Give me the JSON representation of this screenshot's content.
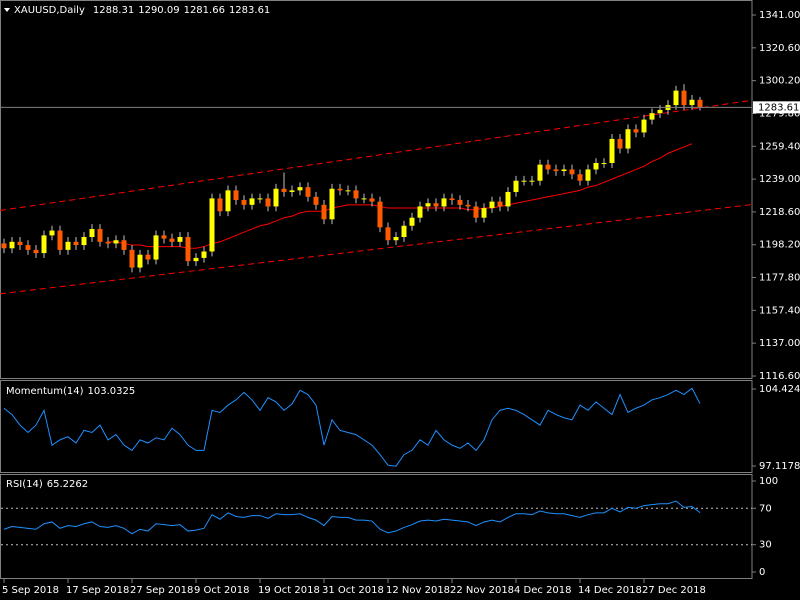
{
  "chart_data": [
    {
      "type": "candlestick",
      "title": "XAUUSD,Daily",
      "categories": [
        "5 Sep 2018",
        null,
        null,
        null,
        null,
        null,
        null,
        null,
        "17 Sep 2018",
        null,
        null,
        null,
        null,
        null,
        null,
        null,
        "27 Sep 2018",
        null,
        null,
        null,
        null,
        null,
        null,
        null,
        "9 Oct 2018",
        null,
        null,
        null,
        null,
        null,
        null,
        null,
        "19 Oct 2018",
        null,
        null,
        null,
        null,
        null,
        null,
        null,
        "31 Oct 2018",
        null,
        null,
        null,
        null,
        null,
        null,
        null,
        "12 Nov 2018",
        null,
        null,
        null,
        null,
        null,
        null,
        null,
        "22 Nov 2018",
        null,
        null,
        null,
        null,
        null,
        null,
        null,
        "4 Dec 2018",
        null,
        null,
        null,
        null,
        null,
        null,
        null,
        "14 Dec 2018",
        null,
        null,
        null,
        null,
        null,
        null,
        null,
        "27 Dec 2018",
        null,
        null,
        null,
        null,
        null,
        null,
        null
      ],
      "open": [
        1199,
        1196,
        1200,
        1198,
        1195,
        1193,
        1204,
        1207,
        1195,
        1200,
        1198,
        1203,
        1208,
        1200,
        1199,
        1201,
        1195,
        1184,
        1192,
        1189,
        1204,
        1202,
        1200,
        1203,
        1188,
        1190,
        1194,
        1227,
        1219,
        1232,
        1226,
        1223,
        1227,
        1227,
        1222,
        1233,
        1231,
        1232,
        1234,
        1228,
        1223,
        1214,
        1233,
        1232,
        1232,
        1227,
        1227,
        1225,
        1209,
        1201,
        1203,
        1210,
        1215,
        1222,
        1224,
        1222,
        1227,
        1226,
        1223,
        1222,
        1215,
        1221,
        1225,
        1222,
        1231,
        1238,
        1238,
        1238,
        1248,
        1245,
        1244,
        1245,
        1242,
        1238,
        1245,
        1249,
        1249,
        1264,
        1258,
        1270,
        1268,
        1276,
        1280,
        1282,
        1285,
        1294,
        1285,
        1288.31
      ],
      "high": [
        1202,
        1203,
        1203,
        1201,
        1198,
        1207,
        1210,
        1210,
        1203,
        1203,
        1206,
        1211,
        1211,
        1203,
        1204,
        1204,
        1198,
        1195,
        1195,
        1207,
        1207,
        1205,
        1206,
        1206,
        1193,
        1197,
        1230,
        1230,
        1235,
        1235,
        1229,
        1230,
        1230,
        1230,
        1236,
        1243,
        1235,
        1237,
        1237,
        1231,
        1226,
        1236,
        1236,
        1235,
        1235,
        1230,
        1230,
        1228,
        1212,
        1206,
        1213,
        1218,
        1225,
        1227,
        1227,
        1230,
        1230,
        1229,
        1226,
        1225,
        1224,
        1228,
        1228,
        1234,
        1241,
        1241,
        1241,
        1251,
        1251,
        1248,
        1248,
        1248,
        1245,
        1248,
        1252,
        1252,
        1267,
        1267,
        1273,
        1273,
        1279,
        1283,
        1285,
        1288,
        1297,
        1298,
        1291.3,
        1290.09
      ],
      "low": [
        1193,
        1193,
        1195,
        1192,
        1190,
        1190,
        1201,
        1192,
        1192,
        1195,
        1195,
        1200,
        1197,
        1196,
        1196,
        1192,
        1181,
        1181,
        1186,
        1186,
        1199,
        1197,
        1197,
        1185,
        1185,
        1187,
        1191,
        1216,
        1216,
        1223,
        1220,
        1220,
        1224,
        1219,
        1219,
        1228,
        1228,
        1229,
        1225,
        1220,
        1211,
        1211,
        1229,
        1229,
        1224,
        1224,
        1222,
        1206,
        1198,
        1198,
        1200,
        1207,
        1212,
        1219,
        1219,
        1219,
        1223,
        1220,
        1219,
        1212,
        1212,
        1218,
        1219,
        1219,
        1228,
        1235,
        1235,
        1235,
        1242,
        1241,
        1241,
        1239,
        1235,
        1235,
        1242,
        1246,
        1246,
        1255,
        1255,
        1265,
        1265,
        1273,
        1277,
        1279,
        1282,
        1282,
        1282,
        1281.66
      ],
      "close": [
        1196,
        1200,
        1198,
        1195,
        1193,
        1204,
        1207,
        1195,
        1200,
        1198,
        1203,
        1208,
        1200,
        1199,
        1201,
        1195,
        1184,
        1192,
        1189,
        1204,
        1202,
        1200,
        1203,
        1188,
        1190,
        1194,
        1227,
        1219,
        1232,
        1226,
        1223,
        1227,
        1227,
        1222,
        1233,
        1231,
        1232,
        1234,
        1228,
        1223,
        1214,
        1233,
        1232,
        1232,
        1227,
        1227,
        1225,
        1209,
        1201,
        1203,
        1210,
        1215,
        1222,
        1224,
        1222,
        1227,
        1226,
        1223,
        1222,
        1215,
        1221,
        1225,
        1222,
        1231,
        1238,
        1238,
        1238,
        1248,
        1245,
        1244,
        1245,
        1242,
        1238,
        1245,
        1249,
        1249,
        1264,
        1258,
        1270,
        1268,
        1276,
        1280,
        1282,
        1285,
        1294,
        1285,
        1288.31,
        1283.61
      ],
      "up_color": "#ffff00",
      "down_color": "#ff5a00",
      "wick_color": "#c0c0c0",
      "moving_average": {
        "color": "#ff0000",
        "values": [
          null,
          null,
          null,
          null,
          null,
          null,
          null,
          null,
          null,
          null,
          null,
          null,
          null,
          1200,
          1200,
          1199,
          1198,
          1198,
          1197,
          1197,
          1197,
          1197,
          1197,
          1196,
          1196,
          1197,
          1199,
          1200,
          1202,
          1204,
          1206,
          1208,
          1210,
          1211,
          1213,
          1215,
          1216,
          1218,
          1219,
          1219,
          1219,
          1221,
          1222,
          1223,
          1223,
          1223,
          1223,
          1222,
          1221,
          1221,
          1221,
          1221,
          1221,
          1221,
          1221,
          1221,
          1221,
          1221,
          1220,
          1220,
          1221,
          1221,
          1222,
          1223,
          1224,
          1225,
          1226,
          1227,
          1228,
          1229,
          1230,
          1231,
          1232,
          1234,
          1235,
          1237,
          1239,
          1241,
          1243,
          1245,
          1247,
          1250,
          1252,
          1255,
          1257,
          1259,
          1261,
          null
        ]
      },
      "trendlines": [
        {
          "color": "#ff0000",
          "x": [
            -0.5,
            93.5
          ],
          "values": [
            1219.5,
            1288.0
          ]
        },
        {
          "color": "#ff0000",
          "x": [
            -0.5,
            93.5
          ],
          "values": [
            1167.7,
            1223.2
          ]
        }
      ],
      "price_line_color": "#808080",
      "ylim": [
        1115.35,
        1349.1
      ],
      "yticks": [
        {
          "value": 1116.6,
          "label": "1116.60"
        },
        {
          "value": 1137.0,
          "label": "1137.00"
        },
        {
          "value": 1157.4,
          "label": "1157.40"
        },
        {
          "value": 1177.8,
          "label": "1177.80"
        },
        {
          "value": 1198.2,
          "label": "1198.20"
        },
        {
          "value": 1218.6,
          "label": "1218.60"
        },
        {
          "value": 1239.0,
          "label": "1239.00"
        },
        {
          "value": 1259.4,
          "label": "1259.40"
        },
        {
          "value": 1279.8,
          "label": "1279.80"
        },
        {
          "value": 1300.2,
          "label": "1300.20"
        },
        {
          "value": 1320.6,
          "label": "1320.60"
        },
        {
          "value": 1341.0,
          "label": "1341.00"
        }
      ]
    },
    {
      "type": "line",
      "title": "Momentum(14)",
      "color": "#1e90ff",
      "values": [
        102.6,
        102.0,
        101.0,
        100.3,
        101.0,
        102.4,
        99.1,
        99.6,
        99.9,
        99.3,
        100.5,
        100.3,
        101.0,
        99.6,
        100.1,
        99.1,
        98.6,
        99.6,
        99.3,
        99.8,
        99.6,
        100.7,
        100.1,
        99.1,
        98.6,
        98.6,
        102.4,
        102.2,
        102.9,
        103.4,
        104.1,
        103.4,
        102.4,
        103.6,
        103.2,
        102.4,
        103.0,
        104.3,
        103.9,
        102.9,
        99.1,
        101.5,
        100.5,
        100.3,
        100.1,
        99.6,
        99.1,
        98.2,
        97.2,
        97.1,
        98.2,
        98.6,
        99.6,
        99.1,
        100.5,
        99.6,
        99.1,
        98.8,
        99.3,
        98.6,
        99.6,
        101.5,
        102.4,
        102.6,
        102.4,
        102.0,
        101.5,
        101.0,
        102.4,
        102.0,
        101.7,
        101.5,
        102.9,
        102.4,
        103.2,
        102.6,
        102.0,
        103.9,
        102.2,
        102.6,
        102.9,
        103.4,
        103.6,
        103.9,
        104.3,
        103.9,
        104.5,
        103.0325
      ],
      "ylim": [
        96.55,
        105.09
      ],
      "yticks": [
        97.1178,
        104.4243
      ]
    },
    {
      "type": "line",
      "title": "RSI(14)",
      "color": "#1e90ff",
      "values": [
        47,
        50,
        49,
        48,
        47,
        53,
        55,
        48,
        51,
        50,
        53,
        55,
        50,
        49,
        51,
        48,
        42,
        47,
        45,
        53,
        52,
        51,
        52,
        45,
        46,
        48,
        63,
        58,
        65,
        61,
        60,
        62,
        62,
        59,
        64,
        63,
        63,
        64,
        60,
        57,
        51,
        61,
        60,
        60,
        57,
        57,
        56,
        47,
        43,
        45,
        49,
        52,
        56,
        57,
        56,
        58,
        57,
        56,
        55,
        51,
        55,
        57,
        55,
        60,
        64,
        64,
        63,
        67,
        65,
        64,
        64,
        62,
        60,
        63,
        65,
        65,
        70,
        66,
        71,
        70,
        73,
        74,
        75,
        75,
        78,
        71,
        72,
        65.2262
      ],
      "levels": [
        70,
        30
      ],
      "level_color": "#c0c0c0",
      "ylim": [
        -6.6,
        105.5
      ],
      "yticks": [
        0,
        30,
        70,
        100
      ]
    }
  ]
}
